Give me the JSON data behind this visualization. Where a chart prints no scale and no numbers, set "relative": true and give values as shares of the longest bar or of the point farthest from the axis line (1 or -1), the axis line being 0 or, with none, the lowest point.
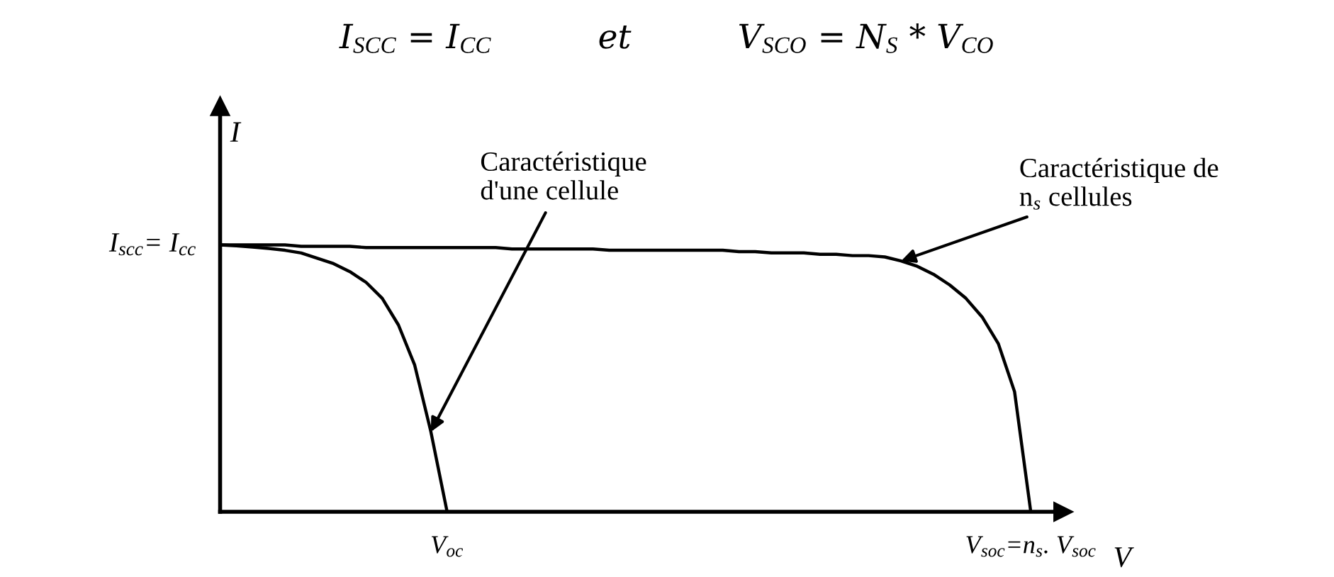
{
  "chart_data": {
    "type": "line",
    "title": "I$_{SCC}$ = I$_{CC}$          et          V$_{SCO}$ = N$_{S}$ * V$_{CO}$",
    "xlabel": "V",
    "ylabel": "I",
    "relative": true,
    "categories": [
      null,
      null,
      null,
      null,
      null,
      null,
      null,
      null,
      null,
      null,
      null,
      null,
      null,
      null,
      null,
      null,
      null,
      null,
      null,
      null,
      null,
      null,
      null,
      null,
      null,
      null,
      null,
      null,
      null,
      null,
      null,
      null,
      null,
      null,
      null,
      null,
      null,
      null,
      null,
      null,
      null,
      null,
      null,
      null,
      null,
      null,
      null,
      null,
      null,
      null,
      null,
      null,
      null
    ],
    "series": [
      {
        "color": "#000000",
        "values": [
          1,
          0.997,
          0.992,
          0.987,
          0.98,
          0.97,
          0.95,
          0.93,
          0.9,
          0.86,
          0.8,
          0.7,
          0.55,
          0.3,
          0,
          null,
          null,
          null,
          null,
          null,
          null,
          null,
          null,
          null,
          null,
          null,
          null,
          null,
          null,
          null,
          null,
          null,
          null,
          null,
          null,
          null,
          null,
          null,
          null,
          null,
          null,
          null,
          null,
          null,
          null,
          null,
          null,
          null,
          null,
          null,
          null,
          null,
          null
        ]
      },
      {
        "color": "#000000",
        "values": [
          1,
          1,
          1,
          1,
          1,
          0.995,
          0.995,
          0.995,
          0.995,
          0.99,
          0.99,
          0.99,
          0.99,
          0.99,
          0.99,
          0.99,
          0.99,
          0.99,
          0.985,
          0.985,
          0.985,
          0.985,
          0.985,
          0.985,
          0.98,
          0.98,
          0.98,
          0.98,
          0.98,
          0.98,
          0.98,
          0.98,
          0.975,
          0.975,
          0.97,
          0.97,
          0.97,
          0.965,
          0.965,
          0.96,
          0.96,
          0.955,
          0.94,
          0.92,
          0.89,
          0.85,
          0.8,
          0.73,
          0.63,
          0.45,
          0,
          null,
          null
        ]
      }
    ],
    "annotations": [
      "I$_{scc}$= I$_{cc}$",
      "V$_{oc}$",
      "V$_{soc}$=n$_{s}$. V$_{soc}$",
      "Caractéristique\nd'une cellule",
      "Caractéristique de\nn$_{s}$ cellules"
    ]
  }
}
